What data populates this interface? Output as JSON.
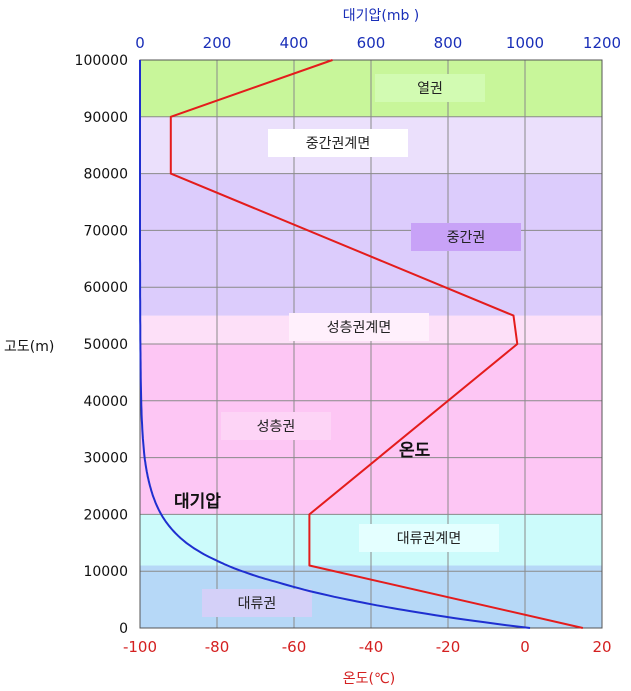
{
  "chart_data": {
    "type": "line",
    "y_axis": {
      "label": "고도(m)",
      "range": [
        0,
        100000
      ],
      "ticks": [
        0,
        10000,
        20000,
        30000,
        40000,
        50000,
        60000,
        70000,
        80000,
        90000,
        100000
      ]
    },
    "x_axis_bottom": {
      "label": "온도(℃)",
      "range": [
        -100,
        20
      ],
      "ticks": [
        -100,
        -80,
        -60,
        -40,
        -20,
        0,
        20
      ]
    },
    "x_axis_top": {
      "label": "대기압(mb )",
      "range": [
        0,
        1200
      ],
      "ticks": [
        0,
        200,
        400,
        600,
        800,
        1000,
        1200
      ]
    },
    "grid": true,
    "layers": [
      {
        "name": "대류권",
        "from": 0,
        "to": 11000,
        "color": "#b6d8f7"
      },
      {
        "name": "대류권계면",
        "from": 11000,
        "to": 20000,
        "color": "#ccfbfb"
      },
      {
        "name": "성층권",
        "from": 20000,
        "to": 50000,
        "color": "#fdc6f4"
      },
      {
        "name": "성층권계면",
        "from": 50000,
        "to": 55000,
        "color": "#fde0f8"
      },
      {
        "name": "중간권",
        "from": 55000,
        "to": 80000,
        "color": "#dcccfc"
      },
      {
        "name": "중간권계면",
        "from": 80000,
        "to": 90000,
        "color": "#ebe0fc"
      },
      {
        "name": "열권",
        "from": 90000,
        "to": 100000,
        "color": "#c8f69a"
      }
    ],
    "series": [
      {
        "name": "온도",
        "axis": "bottom",
        "color": "#e41c1c",
        "points": [
          [
            15,
            0
          ],
          [
            -56,
            11000
          ],
          [
            -56,
            20000
          ],
          [
            -2,
            50000
          ],
          [
            -3,
            55000
          ],
          [
            -92,
            80000
          ],
          [
            -92,
            90000
          ],
          [
            -50,
            100000
          ]
        ]
      },
      {
        "name": "대기압",
        "axis": "top",
        "color": "#1f2fd0",
        "points": [
          [
            1013,
            0
          ],
          [
            700,
            3000
          ],
          [
            540,
            5000
          ],
          [
            360,
            8000
          ],
          [
            265,
            10000
          ],
          [
            195,
            12000
          ],
          [
            120,
            15000
          ],
          [
            55,
            20000
          ],
          [
            26,
            25000
          ],
          [
            12,
            30000
          ],
          [
            3,
            40000
          ],
          [
            1,
            50000
          ],
          [
            0.3,
            60000
          ],
          [
            0.05,
            70000
          ],
          [
            0.01,
            80000
          ],
          [
            0.002,
            90000
          ],
          [
            0.0003,
            100000
          ]
        ]
      }
    ]
  }
}
